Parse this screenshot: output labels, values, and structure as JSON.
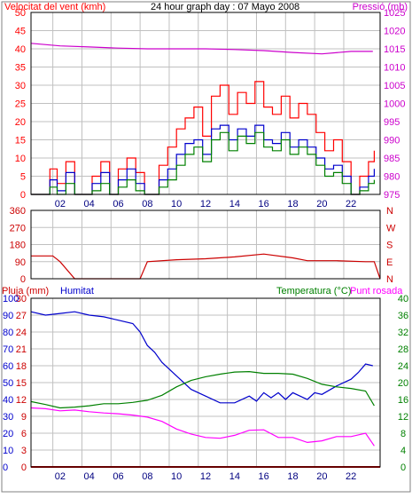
{
  "title": "24 hour graph day : 07 Mayo 2008",
  "colors": {
    "background": "#ffffff",
    "plot_border": "#000000",
    "grid": "#c0c0c0",
    "wind_gust": "#ff0000",
    "wind_avg": "#0000cc",
    "wind_speed2": "#008000",
    "pressure": "#cc00cc",
    "direction": "#cc0000",
    "rain": "#cc0000",
    "humidity": "#0000cc",
    "temperature": "#008000",
    "dewpoint": "#ff00ff"
  },
  "x_ticks": [
    "02",
    "04",
    "06",
    "08",
    "10",
    "12",
    "14",
    "16",
    "18",
    "20",
    "22"
  ],
  "chart_data": [
    {
      "type": "line",
      "title": "24 hour graph day : 07 Mayo 2008",
      "y_left_label": "Velocitat del vent (kmh)",
      "y_right_label": "Pressió (mb)",
      "y_left_ticks": [
        "0",
        "5",
        "10",
        "15",
        "20",
        "25",
        "30",
        "35",
        "40",
        "45",
        "50"
      ],
      "y_right_ticks": [
        "975",
        "980",
        "985",
        "990",
        "995",
        "1000",
        "1005",
        "1010",
        "1015",
        "1020",
        "1025"
      ],
      "xlim": [
        0,
        24
      ],
      "ylim_left": [
        0,
        50
      ],
      "ylim_right": [
        975,
        1025
      ],
      "grid": true,
      "series": [
        {
          "axis": "right",
          "x": [
            0,
            2,
            4,
            6,
            8,
            10,
            12,
            14,
            16,
            18,
            20,
            22,
            23.5
          ],
          "values": [
            1016.5,
            1015.8,
            1015.5,
            1015.2,
            1015.0,
            1015.0,
            1015.0,
            1014.8,
            1014.5,
            1014.0,
            1013.6,
            1014.3,
            1014.3
          ]
        },
        {
          "axis": "left",
          "x": [
            0,
            0.8,
            1.3,
            1.8,
            2.4,
            3,
            3.6,
            4.2,
            4.8,
            5.4,
            6,
            6.6,
            7.2,
            7.8,
            8.3,
            8.8,
            9.4,
            10,
            10.6,
            11.2,
            11.8,
            12.4,
            13,
            13.6,
            14.2,
            14.8,
            15.4,
            16,
            16.6,
            17.2,
            17.8,
            18.4,
            19,
            19.6,
            20.2,
            20.8,
            21.4,
            22,
            22.6,
            23.2,
            23.6
          ],
          "values": [
            0,
            0,
            7,
            3,
            9,
            0,
            0,
            5,
            9,
            0,
            7,
            10,
            6,
            0,
            0,
            8,
            13,
            18,
            21,
            24,
            16,
            27,
            30,
            22,
            28,
            25,
            31,
            24,
            22,
            27,
            21,
            25,
            22,
            17,
            12,
            15,
            9,
            0,
            5,
            9,
            12
          ]
        },
        {
          "axis": "left",
          "x": [
            0,
            0.8,
            1.3,
            1.8,
            2.4,
            3,
            3.6,
            4.2,
            4.8,
            5.4,
            6,
            6.6,
            7.2,
            7.8,
            8.3,
            8.8,
            9.4,
            10,
            10.6,
            11.2,
            11.8,
            12.4,
            13,
            13.6,
            14.2,
            14.8,
            15.4,
            16,
            16.6,
            17.2,
            17.8,
            18.4,
            19,
            19.6,
            20.2,
            20.8,
            21.4,
            22,
            22.6,
            23.2,
            23.6
          ],
          "values": [
            0,
            0,
            4,
            1,
            6,
            0,
            0,
            3,
            6,
            0,
            4,
            7,
            3,
            0,
            0,
            4,
            7,
            11,
            14,
            15,
            11,
            18,
            19,
            15,
            18,
            16,
            19,
            15,
            14,
            17,
            13,
            15,
            13,
            10,
            7,
            8,
            5,
            0,
            2,
            5,
            7
          ]
        },
        {
          "axis": "left",
          "x": [
            0,
            0.8,
            1.3,
            1.8,
            2.4,
            3,
            3.6,
            4.2,
            4.8,
            5.4,
            6,
            6.6,
            7.2,
            7.8,
            8.3,
            8.8,
            9.4,
            10,
            10.6,
            11.2,
            11.8,
            12.4,
            13,
            13.6,
            14.2,
            14.8,
            15.4,
            16,
            16.6,
            17.2,
            17.8,
            18.4,
            19,
            19.6,
            20.2,
            20.8,
            21.4,
            22,
            22.6,
            23.2,
            23.6
          ],
          "values": [
            0,
            0,
            2,
            0,
            3,
            0,
            0,
            1,
            3,
            0,
            2,
            4,
            1,
            0,
            0,
            2,
            4,
            8,
            11,
            13,
            9,
            15,
            17,
            12,
            16,
            14,
            17,
            13,
            12,
            15,
            11,
            13,
            11,
            8,
            5,
            6,
            3,
            0,
            1,
            3,
            4
          ]
        }
      ]
    },
    {
      "type": "line",
      "y_ticks_left": [
        "360",
        "270",
        "180",
        "90",
        "0"
      ],
      "y_ticks_right": [
        "N",
        "W",
        "S",
        "E",
        "N"
      ],
      "ylim": [
        0,
        360
      ],
      "grid": true,
      "series": [
        {
          "x": [
            0,
            1.5,
            2,
            3,
            5,
            6.5,
            7,
            7.5,
            8,
            10,
            12,
            14,
            16,
            18,
            19,
            21,
            23,
            23.6,
            24
          ],
          "values": [
            120,
            120,
            90,
            0,
            0,
            0,
            0,
            0,
            90,
            100,
            105,
            115,
            130,
            110,
            95,
            95,
            90,
            90,
            0
          ]
        }
      ]
    },
    {
      "type": "line",
      "y_left_label": "Pluja (mm)",
      "y_left_label2": "Humitat",
      "y_right_label": "Temperatura (°C)",
      "y_right_label2": "Punt rosada",
      "y_left_ticks_rain": [
        "0",
        "3",
        "6",
        "9",
        "12",
        "15",
        "18",
        "21",
        "24",
        "27",
        "30"
      ],
      "y_left_ticks_hum": [
        "0",
        "10",
        "20",
        "30",
        "40",
        "50",
        "60",
        "70",
        "80",
        "90",
        "100"
      ],
      "y_right_ticks": [
        "0",
        "4",
        "8",
        "12",
        "16",
        "20",
        "24",
        "28",
        "32",
        "36",
        "40"
      ],
      "ylim_humidity": [
        0,
        100
      ],
      "ylim_temperature": [
        0,
        40
      ],
      "grid": true,
      "series": [
        {
          "axis": "rain",
          "x": [
            0,
            24
          ],
          "values": [
            0,
            0
          ]
        },
        {
          "axis": "humidity",
          "x": [
            0,
            1,
            2,
            3,
            4,
            5,
            6,
            7,
            7.5,
            8,
            8.5,
            9,
            10,
            11,
            12,
            13,
            14,
            15,
            15.5,
            16,
            16.5,
            17,
            17.5,
            18,
            19,
            19.5,
            20,
            21,
            22,
            22.5,
            23,
            23.5
          ],
          "values": [
            92,
            90,
            91,
            92,
            90,
            89,
            87,
            85,
            80,
            72,
            68,
            62,
            54,
            46,
            42,
            38,
            38,
            42,
            39,
            44,
            41,
            44,
            40,
            44,
            40,
            44,
            43,
            48,
            52,
            56,
            61,
            60
          ]
        },
        {
          "axis": "temperature",
          "x": [
            0,
            1,
            2,
            3,
            4,
            5,
            6,
            7,
            8,
            9,
            10,
            11,
            12,
            13,
            14,
            15,
            16,
            17,
            18,
            19,
            20,
            21,
            22,
            23,
            23.6
          ],
          "values": [
            15.5,
            14.8,
            14,
            14.2,
            14.5,
            15,
            15,
            15.3,
            15.8,
            17,
            19,
            20.5,
            21.4,
            22,
            22.5,
            22.6,
            22.2,
            22.2,
            22,
            21,
            19.6,
            19,
            18.6,
            18,
            14.5
          ]
        },
        {
          "axis": "temperature",
          "x": [
            0,
            1,
            2,
            3,
            4,
            5,
            6,
            7,
            8,
            9,
            10,
            11,
            12,
            13,
            14,
            15,
            16,
            17,
            18,
            19,
            20,
            21,
            22,
            23,
            23.6
          ],
          "values": [
            14,
            13.8,
            13.3,
            13.5,
            13.1,
            12.8,
            12.6,
            12.3,
            11.8,
            10.8,
            9,
            7.8,
            7,
            6.8,
            7.5,
            8.7,
            8.8,
            7,
            7,
            5.8,
            6.2,
            7.2,
            7.2,
            8,
            5
          ]
        }
      ]
    }
  ]
}
